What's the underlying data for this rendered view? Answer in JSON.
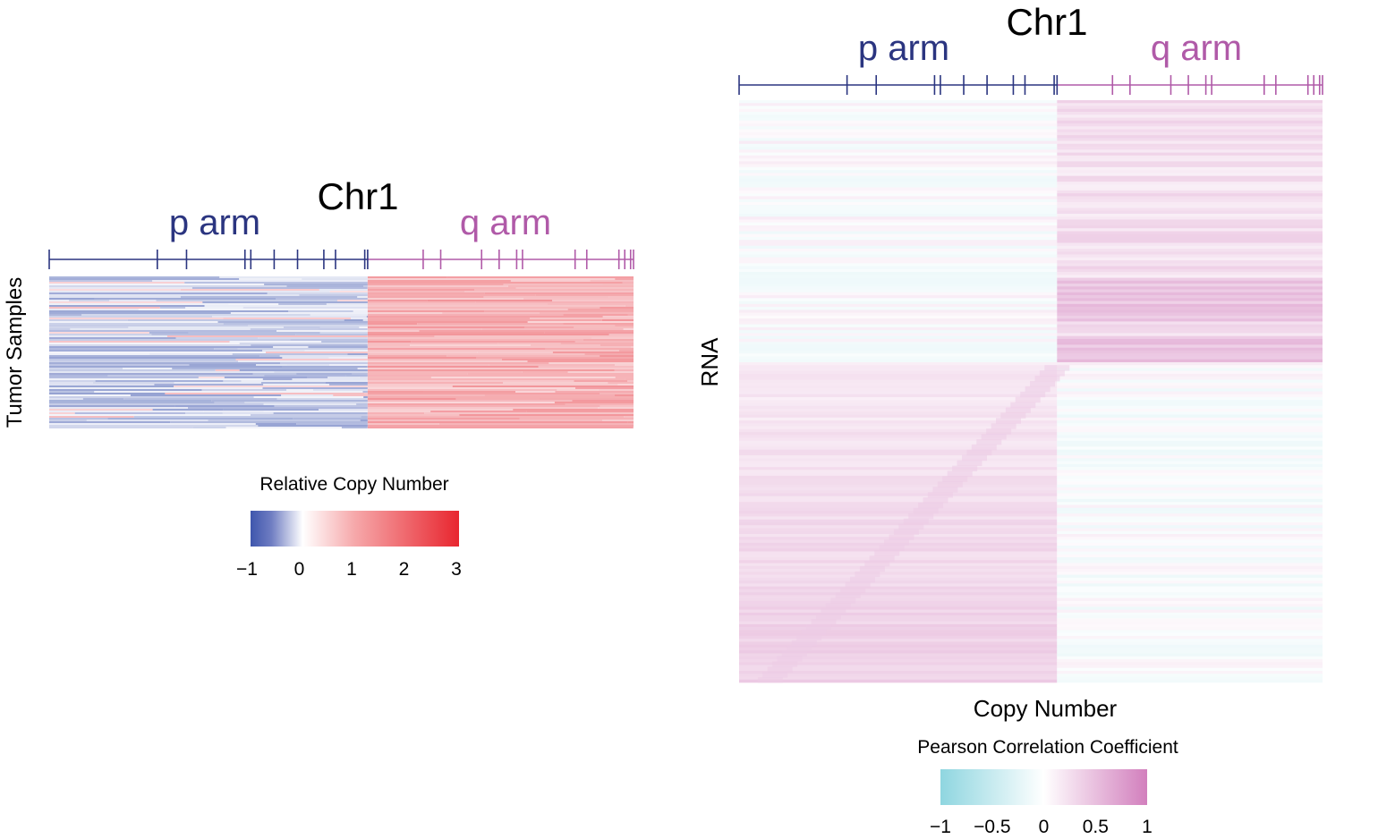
{
  "colors": {
    "p_arm": "#2b3580",
    "q_arm": "#b05aa8",
    "cn_low": "#3f56ad",
    "cn_mid": "#ffffff",
    "cn_high": "#e8262f",
    "corr_low": "#8fd6e0",
    "corr_mid": "#ffffff",
    "corr_high": "#d27fbd"
  },
  "chart_data": [
    {
      "type": "heatmap",
      "title": "Chr1",
      "p_arm_label": "p arm",
      "q_arm_label": "q arm",
      "xlabel": "",
      "ylabel": "Tumor Samples",
      "colorbar": {
        "title": "Relative Copy Number",
        "ticks": [
          "−1",
          "0",
          "1",
          "2",
          "3"
        ],
        "range": [
          -1,
          3
        ]
      },
      "p_arm_fraction": 0.545,
      "p_arm_band_boundaries": [
        0.185,
        0.235,
        0.335,
        0.345,
        0.385,
        0.425,
        0.47,
        0.49,
        0.54,
        0.545
      ],
      "q_arm_band_boundaries": [
        0.64,
        0.67,
        0.74,
        0.77,
        0.8,
        0.81,
        0.9,
        0.92,
        0.975,
        0.985,
        0.995
      ],
      "patterns": {
        "p_arm_mean": -0.45,
        "q_arm_mean": 0.9
      }
    },
    {
      "type": "heatmap",
      "title": "Chr1",
      "p_arm_label": "p arm",
      "q_arm_label": "q arm",
      "xlabel": "Copy Number",
      "ylabel": "RNA",
      "colorbar": {
        "title": "Pearson Correlation Coefficient",
        "ticks": [
          "−1",
          "−0.5",
          "0",
          "0.5",
          "1"
        ],
        "range": [
          -1,
          1
        ]
      },
      "p_arm_fraction": 0.545,
      "p_arm_band_boundaries": [
        0.185,
        0.235,
        0.335,
        0.345,
        0.385,
        0.425,
        0.47,
        0.49,
        0.54,
        0.545
      ],
      "q_arm_band_boundaries": [
        0.64,
        0.67,
        0.74,
        0.77,
        0.8,
        0.81,
        0.9,
        0.92,
        0.975,
        0.985,
        0.995
      ],
      "patterns": {
        "diagonal_strength": 0.35,
        "q_block_strength": 0.28
      }
    }
  ]
}
